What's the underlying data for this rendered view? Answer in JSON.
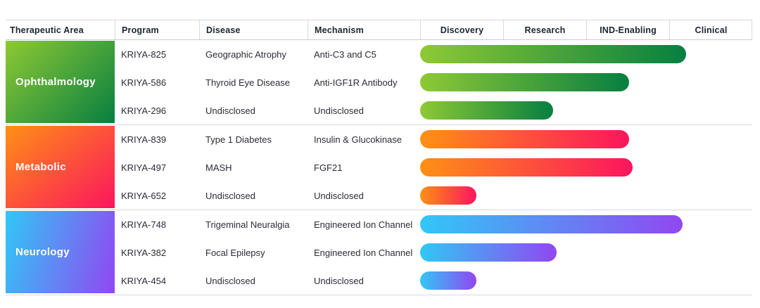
{
  "header": {
    "columns": [
      "Therapeutic Area",
      "Program",
      "Disease",
      "Mechanism"
    ],
    "stages": [
      "Discovery",
      "Research",
      "IND-Enabling",
      "Clinical"
    ]
  },
  "groups": [
    {
      "area": "Ophthalmology",
      "colors": [
        "#8EC934",
        "#077F41"
      ],
      "rows": [
        {
          "program": "KRIYA-825",
          "disease": "Geographic Atrophy",
          "mechanism": "Anti-C3 and C5",
          "progress_pct": 80
        },
        {
          "program": "KRIYA-586",
          "disease": "Thyroid Eye Disease",
          "mechanism": "Anti-IGF1R Antibody",
          "progress_pct": 63
        },
        {
          "program": "KRIYA-296",
          "disease": "Undisclosed",
          "mechanism": "Undisclosed",
          "progress_pct": 40
        }
      ]
    },
    {
      "area": "Metabolic",
      "colors": [
        "#FF9015",
        "#FB155E"
      ],
      "rows": [
        {
          "program": "KRIYA-839",
          "disease": "Type 1 Diabetes",
          "mechanism": "Insulin & Glucokinase",
          "progress_pct": 63
        },
        {
          "program": "KRIYA-497",
          "disease": "MASH",
          "mechanism": "FGF21",
          "progress_pct": 64
        },
        {
          "program": "KRIYA-652",
          "disease": "Undisclosed",
          "mechanism": "Undisclosed",
          "progress_pct": 17
        }
      ]
    },
    {
      "area": "Neurology",
      "colors": [
        "#31C7F6",
        "#9147F1"
      ],
      "rows": [
        {
          "program": "KRIYA-748",
          "disease": "Trigeminal Neuralgia",
          "mechanism": "Engineered Ion Channel",
          "progress_pct": 79
        },
        {
          "program": "KRIYA-382",
          "disease": "Focal Epilepsy",
          "mechanism": "Engineered Ion Channel",
          "progress_pct": 41
        },
        {
          "program": "KRIYA-454",
          "disease": "Undisclosed",
          "mechanism": "Undisclosed",
          "progress_pct": 17
        }
      ]
    }
  ],
  "chart_data": {
    "type": "bar",
    "orientation": "horizontal",
    "stages": [
      "Discovery",
      "Research",
      "IND-Enabling",
      "Clinical"
    ],
    "stage_axis_range": [
      0,
      4
    ],
    "grid": "off",
    "bars": [
      {
        "group": "Ophthalmology",
        "program": "KRIYA-825",
        "disease": "Geographic Atrophy",
        "mechanism": "Anti-C3 and C5",
        "progress_stage_units": 3.2
      },
      {
        "group": "Ophthalmology",
        "program": "KRIYA-586",
        "disease": "Thyroid Eye Disease",
        "mechanism": "Anti-IGF1R Antibody",
        "progress_stage_units": 2.5
      },
      {
        "group": "Ophthalmology",
        "program": "KRIYA-296",
        "disease": "Undisclosed",
        "mechanism": "Undisclosed",
        "progress_stage_units": 1.6
      },
      {
        "group": "Metabolic",
        "program": "KRIYA-839",
        "disease": "Type 1 Diabetes",
        "mechanism": "Insulin & Glucokinase",
        "progress_stage_units": 2.5
      },
      {
        "group": "Metabolic",
        "program": "KRIYA-497",
        "disease": "MASH",
        "mechanism": "FGF21",
        "progress_stage_units": 2.6
      },
      {
        "group": "Metabolic",
        "program": "KRIYA-652",
        "disease": "Undisclosed",
        "mechanism": "Undisclosed",
        "progress_stage_units": 0.7
      },
      {
        "group": "Neurology",
        "program": "KRIYA-748",
        "disease": "Trigeminal Neuralgia",
        "mechanism": "Engineered Ion Channel",
        "progress_stage_units": 3.2
      },
      {
        "group": "Neurology",
        "program": "KRIYA-382",
        "disease": "Focal Epilepsy",
        "mechanism": "Engineered Ion Channel",
        "progress_stage_units": 1.6
      },
      {
        "group": "Neurology",
        "program": "KRIYA-454",
        "disease": "Undisclosed",
        "mechanism": "Undisclosed",
        "progress_stage_units": 0.7
      }
    ]
  }
}
